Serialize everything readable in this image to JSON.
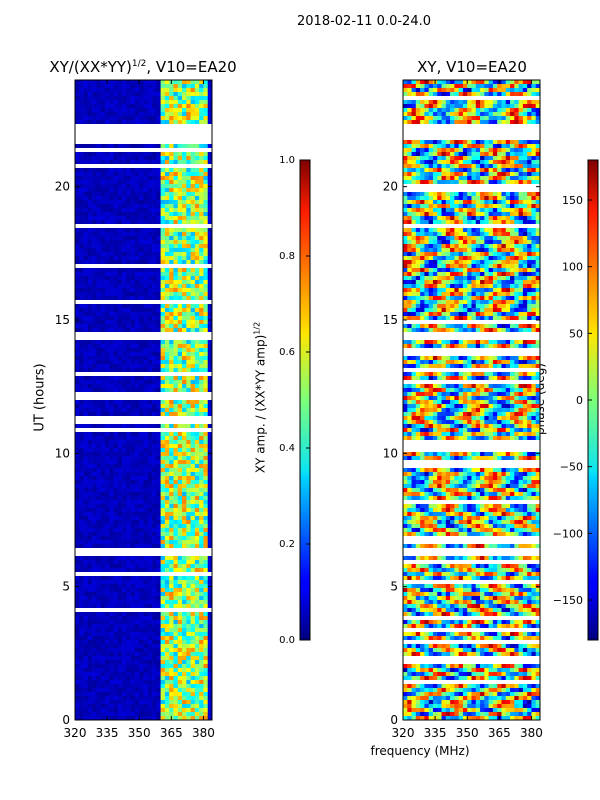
{
  "figure": {
    "suptitle": "2018-02-11 0.0-24.0",
    "xlabel": "frequency (MHz)"
  },
  "chart_data": [
    {
      "type": "heatmap",
      "title": "XY/(XX*YY)^{1/2}, V10=EA20",
      "title_main": "XY/(XX*YY)",
      "title_sup": "1/2",
      "title_tail": ", V10=EA20",
      "xlabel": "frequency (MHz)",
      "ylabel": "UT (hours)",
      "xlim": [
        320,
        384
      ],
      "ylim": [
        0,
        24
      ],
      "xticks": [
        320,
        335,
        350,
        365,
        380
      ],
      "yticks": [
        0,
        5,
        10,
        15,
        20
      ],
      "colorbar": {
        "label": "XY amp. / (XX*YY amp)^{1/2}",
        "label_main": "XY amp. / (XX*YY amp)",
        "label_sup": "1/2",
        "range": [
          0.0,
          1.0
        ],
        "ticks": [
          "0.0",
          "0.2",
          "0.4",
          "0.6",
          "0.8",
          "1.0"
        ],
        "colormap": "jet"
      },
      "gaps_ut": [
        [
          21.8,
          22.4
        ],
        [
          14.3,
          14.6
        ],
        [
          6.1,
          6.5
        ]
      ],
      "signal_band_mhz": [
        360,
        384
      ]
    },
    {
      "type": "heatmap",
      "title": "XY, V10=EA20",
      "xlabel": "frequency (MHz)",
      "ylabel": "",
      "xlim": [
        320,
        384
      ],
      "ylim": [
        0,
        24
      ],
      "xticks": [
        320,
        335,
        350,
        365,
        380
      ],
      "yticks": [
        0,
        5,
        10,
        15,
        20
      ],
      "colorbar": {
        "label": "phase (deg)",
        "range": [
          -180,
          180
        ],
        "ticks": [
          "150",
          "100",
          "50",
          "0",
          "−50",
          "−100",
          "−150"
        ],
        "tick_values": [
          150,
          100,
          50,
          0,
          -50,
          -100,
          -150
        ],
        "colormap": "jet"
      },
      "gaps_ut": [
        [
          21.8,
          22.4
        ],
        [
          14.3,
          14.6
        ],
        [
          6.1,
          6.5
        ]
      ]
    }
  ]
}
